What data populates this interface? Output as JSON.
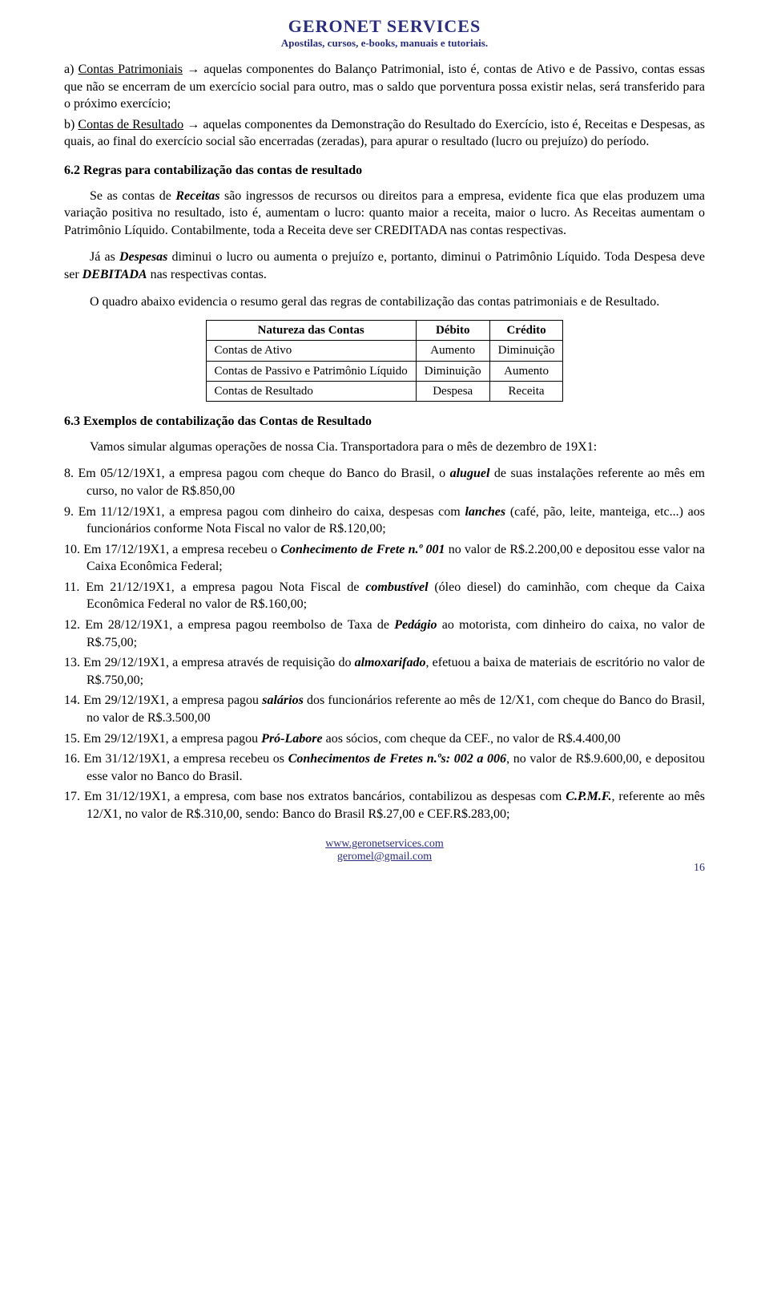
{
  "header": {
    "title": "GERONET SERVICES",
    "subtitle": "Apostilas, cursos, e-books, manuais e tutoriais."
  },
  "itemA": {
    "label": "a) ",
    "ul": "Contas Patrimoniais",
    "rest": " → aquelas componentes do Balanço Patrimonial, isto é, contas de Ativo e de Passivo, contas essas que não se encerram de um exercício social para outro, mas o saldo que porventura possa existir nelas, será transferido para o próximo exercício;"
  },
  "itemB": {
    "label": "b) ",
    "ul": "Contas de Resultado",
    "rest": " → aquelas componentes da Demonstração do Resultado do Exercício, isto é, Receitas e Despesas, as quais, ao final do exercício social são encerradas (zeradas), para apurar o resultado (lucro ou prejuízo) do período."
  },
  "sec62_title": "6.2 Regras para contabilização das contas de resultado",
  "sec62_p1a": "Se as contas de ",
  "sec62_p1b": "Receitas",
  "sec62_p1c": " são ingressos de recursos ou direitos para a empresa, evidente fica que elas produzem uma variação positiva no resultado, isto é, aumentam o lucro: quanto maior a receita, maior o lucro. As Receitas aumentam o Patrimônio Líquido. Contabilmente, toda a Receita deve ser CREDITADA nas contas respectivas.",
  "sec62_p2a": "Já as ",
  "sec62_p2b": "Despesas",
  "sec62_p2c": " diminui o lucro ou aumenta o prejuízo e, portanto, diminui o Patrimônio Líquido. Toda Despesa deve ser ",
  "sec62_p2d": "DEBITADA",
  "sec62_p2e": " nas respectivas contas.",
  "sec62_p3": "O quadro abaixo evidencia o resumo geral das regras de contabilização das contas patrimoniais e de Resultado.",
  "table": {
    "headers": [
      "Natureza das Contas",
      "Débito",
      "Crédito"
    ],
    "rows": [
      [
        "Contas de Ativo",
        "Aumento",
        "Diminuição"
      ],
      [
        "Contas de Passivo e Patrimônio Líquido",
        "Diminuição",
        "Aumento"
      ],
      [
        "Contas de Resultado",
        "Despesa",
        "Receita"
      ]
    ]
  },
  "sec63_title": "6.3 Exemplos de contabilização das Contas de Resultado",
  "sec63_p1": "Vamos simular algumas operações de nossa Cia. Transportadora para o mês de dezembro de 19X1:",
  "items": [
    {
      "n": "8.",
      "t": "Em 05/12/19X1, a empresa pagou com cheque do Banco do Brasil,  o ",
      "b": "aluguel",
      "r": " de suas instalações referente ao mês em curso, no    valor de R$.850,00"
    },
    {
      "n": "9.",
      "t": "Em 11/12/19X1, a empresa pagou com dinheiro do caixa, despesas com ",
      "b": "lanches",
      "r": " (café, pão, leite, manteiga, etc...) aos funcionários conforme Nota Fiscal no valor de R$.120,00;"
    },
    {
      "n": "10.",
      "t": "Em 17/12/19X1, a empresa recebeu o ",
      "b": "Conhecimento de Frete n.º 001",
      "r": " no valor de R$.2.200,00 e depositou esse valor na Caixa Econômica Federal;"
    },
    {
      "n": "11.",
      "t": "Em 21/12/19X1, a empresa pagou Nota Fiscal de ",
      "b": "combustível",
      "r": " (óleo diesel) do caminhão, com cheque da Caixa Econômica Federal no valor de R$.160,00;"
    },
    {
      "n": "12.",
      "t": "Em 28/12/19X1, a empresa pagou reembolso de Taxa de ",
      "b": "Pedágio",
      "r": " ao motorista, com dinheiro do caixa, no valor de R$.75,00;"
    },
    {
      "n": "13.",
      "t": "Em 29/12/19X1, a empresa através de requisição do ",
      "b": "almoxarifado",
      "r": ", efetuou a baixa de materiais de escritório no valor de R$.750,00;"
    },
    {
      "n": "14.",
      "t": "Em 29/12/19X1, a empresa pagou ",
      "b": "salários",
      "r": " dos funcionários referente ao mês de 12/X1, com cheque do Banco do Brasil, no valor de R$.3.500,00"
    },
    {
      "n": "15.",
      "t": "Em 29/12/19X1, a empresa pagou ",
      "b": "Pró-Labore",
      "r": " aos sócios, com cheque da CEF., no valor de R$.4.400,00"
    },
    {
      "n": "16.",
      "t": "Em 31/12/19X1, a empresa recebeu os ",
      "b": "Conhecimentos de Fretes n.ºs: 002 a 006",
      "r": ", no valor de R$.9.600,00, e depositou esse valor no Banco do Brasil."
    },
    {
      "n": "17.",
      "t": "Em 31/12/19X1, a empresa, com base nos extratos bancários, contabilizou as despesas com ",
      "b": "C.P.M.F.",
      "r": ", referente ao mês 12/X1, no valor de R$.310,00, sendo: Banco do Brasil R$.27,00 e CEF.R$.283,00;"
    }
  ],
  "footer": {
    "url": "www.geronetservices.com",
    "mail": "geromel@gmail.com",
    "page": "16"
  }
}
